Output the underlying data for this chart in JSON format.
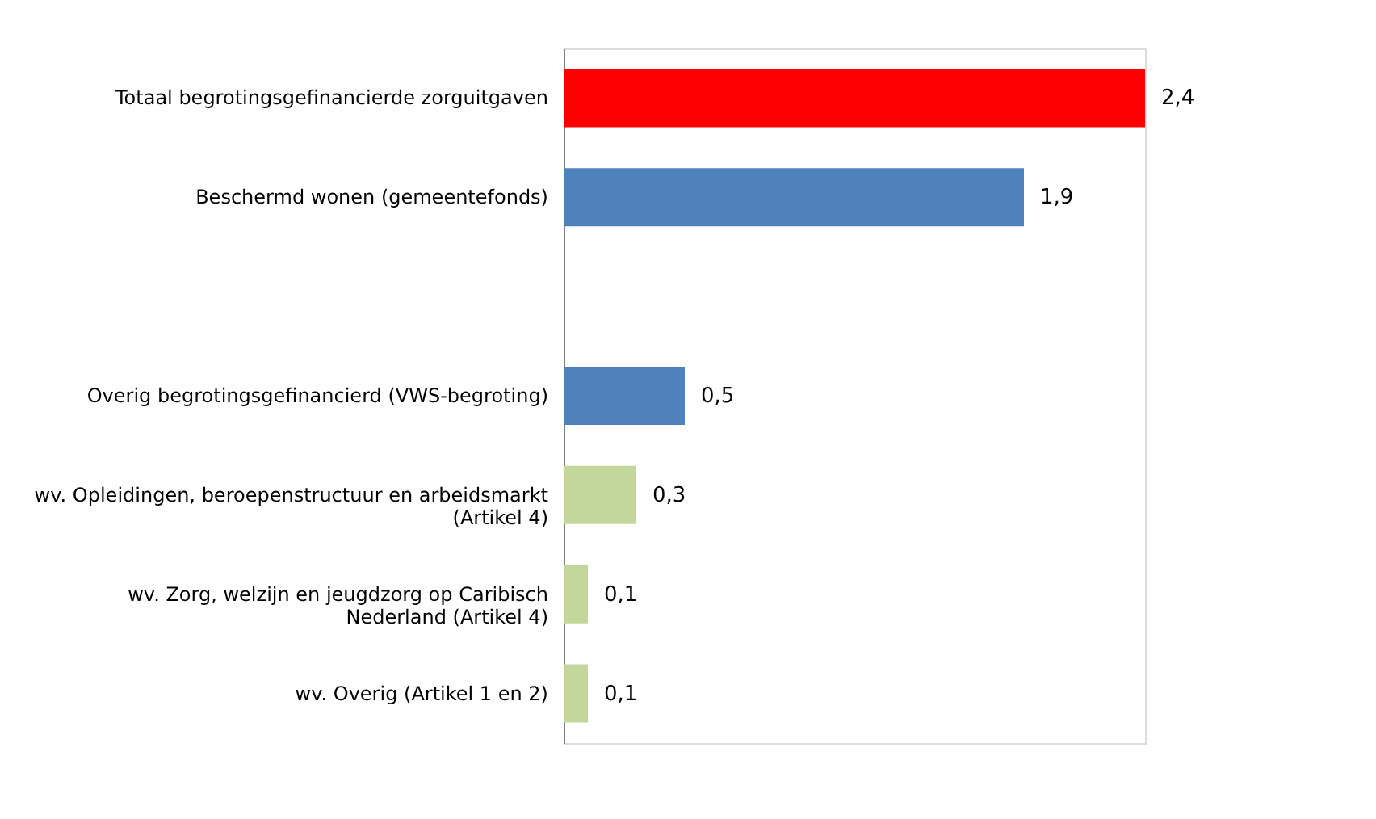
{
  "chart_data": {
    "type": "bar",
    "orientation": "horizontal",
    "categories": [
      "Totaal begrotingsgefinancierde zorguitgaven",
      "Beschermd wonen (gemeentefonds)",
      null,
      "Overig begrotingsgefinancierd (VWS-begroting)",
      "wv. Opleidingen, beroepenstructuur en arbeidsmarkt (Artikel 4)",
      "wv. Zorg, welzijn en jeugdzorg op Caribisch Nederland (Artikel 4)",
      "wv. Overig (Artikel 1 en 2)"
    ],
    "values": [
      2.4,
      1.9,
      null,
      0.5,
      0.3,
      0.1,
      0.1
    ],
    "colors": [
      "#ff0000",
      "#4f81bd",
      null,
      "#4f81bd",
      "#c3d69b",
      "#c3d69b",
      "#c3d69b"
    ],
    "value_labels": [
      "2,4",
      "1,9",
      null,
      "0,5",
      "0,3",
      "0,1",
      "0,1"
    ],
    "grid": false
  }
}
